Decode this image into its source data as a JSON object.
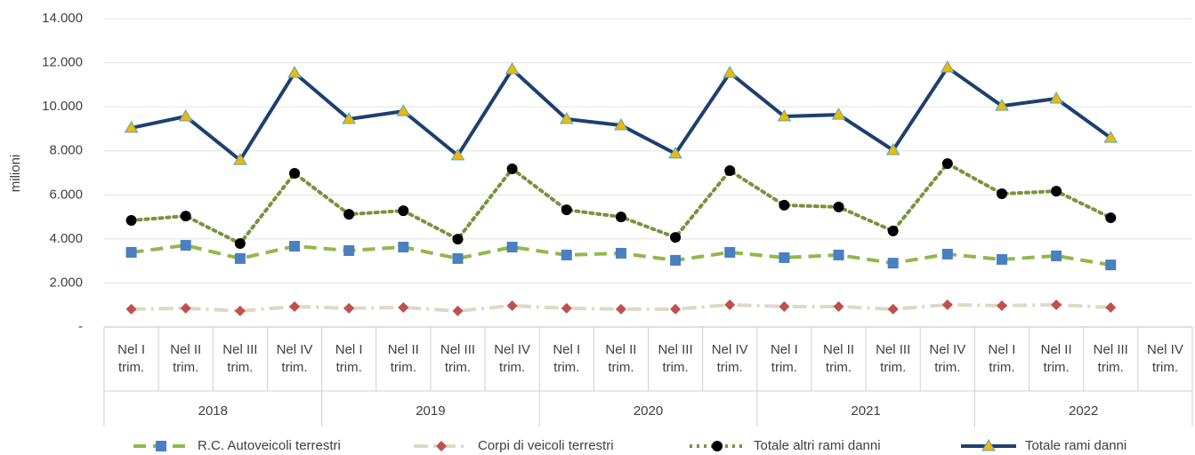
{
  "chart_data": {
    "type": "line",
    "y_label": "milioni",
    "categories": [
      "Nel I trim.",
      "Nel II trim.",
      "Nel III trim.",
      "Nel IV trim.",
      "Nel I trim.",
      "Nel II trim.",
      "Nel III trim.",
      "Nel IV trim.",
      "Nel I trim.",
      "Nel II trim.",
      "Nel III trim.",
      "Nel IV trim.",
      "Nel I trim.",
      "Nel II trim.",
      "Nel III trim.",
      "Nel IV trim.",
      "Nel I trim.",
      "Nel II trim.",
      "Nel III trim.",
      "Nel IV trim."
    ],
    "years": [
      "2018",
      "2019",
      "2020",
      "2021",
      "2022"
    ],
    "ylim": [
      0,
      14000
    ],
    "yticks": [
      {
        "value": 0,
        "label": "-"
      },
      {
        "value": 2000,
        "label": "2.000"
      },
      {
        "value": 4000,
        "label": "4.000"
      },
      {
        "value": 6000,
        "label": "6.000"
      },
      {
        "value": 8000,
        "label": "8.000"
      },
      {
        "value": 10000,
        "label": "10.000"
      },
      {
        "value": 12000,
        "label": "12.000"
      },
      {
        "value": 14000,
        "label": "14.000"
      }
    ],
    "grid": true,
    "legend": "bottom",
    "series": [
      {
        "name": "R.C. Autoveicoli terrestri",
        "color": "#92b84a",
        "marker_color": "#4a7fc1",
        "marker": "square",
        "dash": "14 8",
        "values": [
          3390,
          3710,
          3110,
          3670,
          3470,
          3630,
          3110,
          3630,
          3270,
          3350,
          3030,
          3390,
          3150,
          3270,
          2900,
          3310,
          3070,
          3230,
          2820,
          null
        ]
      },
      {
        "name": "Corpi di veicoli terrestri",
        "color": "#ddd9c4",
        "marker_color": "#c0504d",
        "marker": "diamond",
        "dash": "16 6 3 6",
        "values": [
          810,
          850,
          730,
          930,
          850,
          890,
          730,
          970,
          850,
          810,
          810,
          1010,
          930,
          930,
          810,
          1010,
          970,
          1010,
          890,
          null
        ]
      },
      {
        "name": "Totale altri rami danni",
        "color": "#77933c",
        "marker_color": "#000000",
        "marker": "circle",
        "dash": "3 5",
        "values": [
          4840,
          5040,
          3790,
          6980,
          5120,
          5280,
          3990,
          7180,
          5320,
          5000,
          4070,
          7100,
          5530,
          5450,
          4360,
          7420,
          6050,
          6170,
          4960,
          null
        ]
      },
      {
        "name": "Totale rami danni",
        "color": "#1f3f6e",
        "marker_color": "#f2b700",
        "marker": "triangle",
        "dash": "",
        "values": [
          9040,
          9560,
          7580,
          11540,
          9440,
          9800,
          7790,
          11700,
          9440,
          9160,
          7870,
          11540,
          9560,
          9640,
          8030,
          11780,
          10040,
          10370,
          8590,
          null
        ]
      }
    ]
  }
}
